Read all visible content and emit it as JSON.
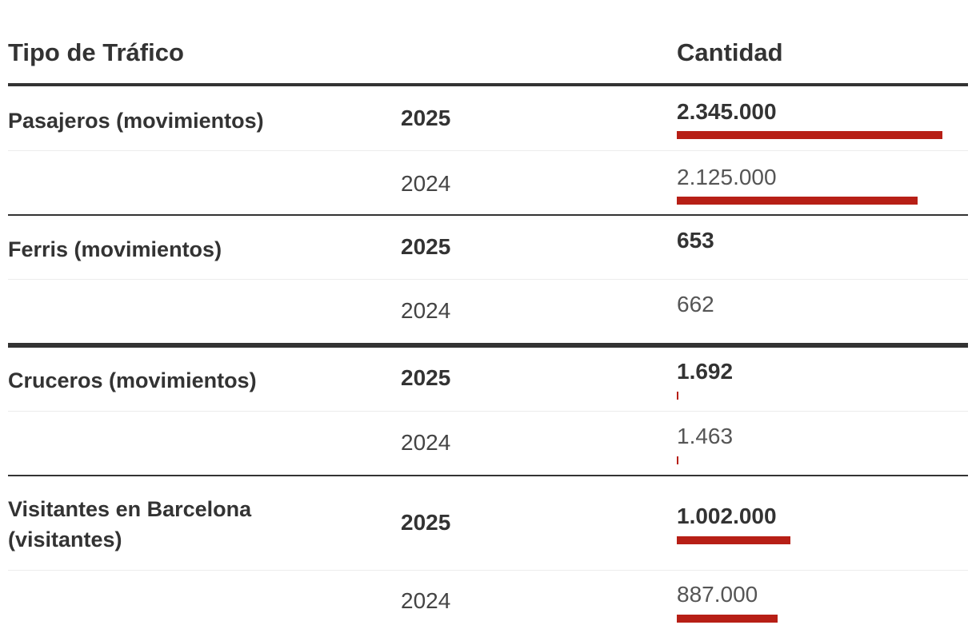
{
  "header": {
    "col_type": "Tipo de Tráfico",
    "col_qty": "Cantidad"
  },
  "colors": {
    "bar": "#b71f16",
    "text": "#333333"
  },
  "chart_data": {
    "type": "table",
    "title": "",
    "columns": [
      "Tipo de Tráfico",
      "",
      "Cantidad"
    ],
    "bar_max_value": 2345000,
    "groups": [
      {
        "label": "Pasajeros (movimientos)",
        "rows": [
          {
            "year": "2025",
            "display": "2.345.000",
            "value": 2345000
          },
          {
            "year": "2024",
            "display": "2.125.000",
            "value": 2125000
          }
        ]
      },
      {
        "label": "Ferris (movimientos)",
        "rows": [
          {
            "year": "2025",
            "display": "653",
            "value": 653
          },
          {
            "year": "2024",
            "display": "662",
            "value": 662
          }
        ]
      },
      {
        "label": "Cruceros (movimientos)",
        "rows": [
          {
            "year": "2025",
            "display": "1.692",
            "value": 1692
          },
          {
            "year": "2024",
            "display": "1.463",
            "value": 1463
          }
        ]
      },
      {
        "label": "Visitantes en Barcelona (visitantes)",
        "rows": [
          {
            "year": "2025",
            "display": "1.002.000",
            "value": 1002000
          },
          {
            "year": "2024",
            "display": "887.000",
            "value": 887000
          }
        ]
      }
    ]
  }
}
